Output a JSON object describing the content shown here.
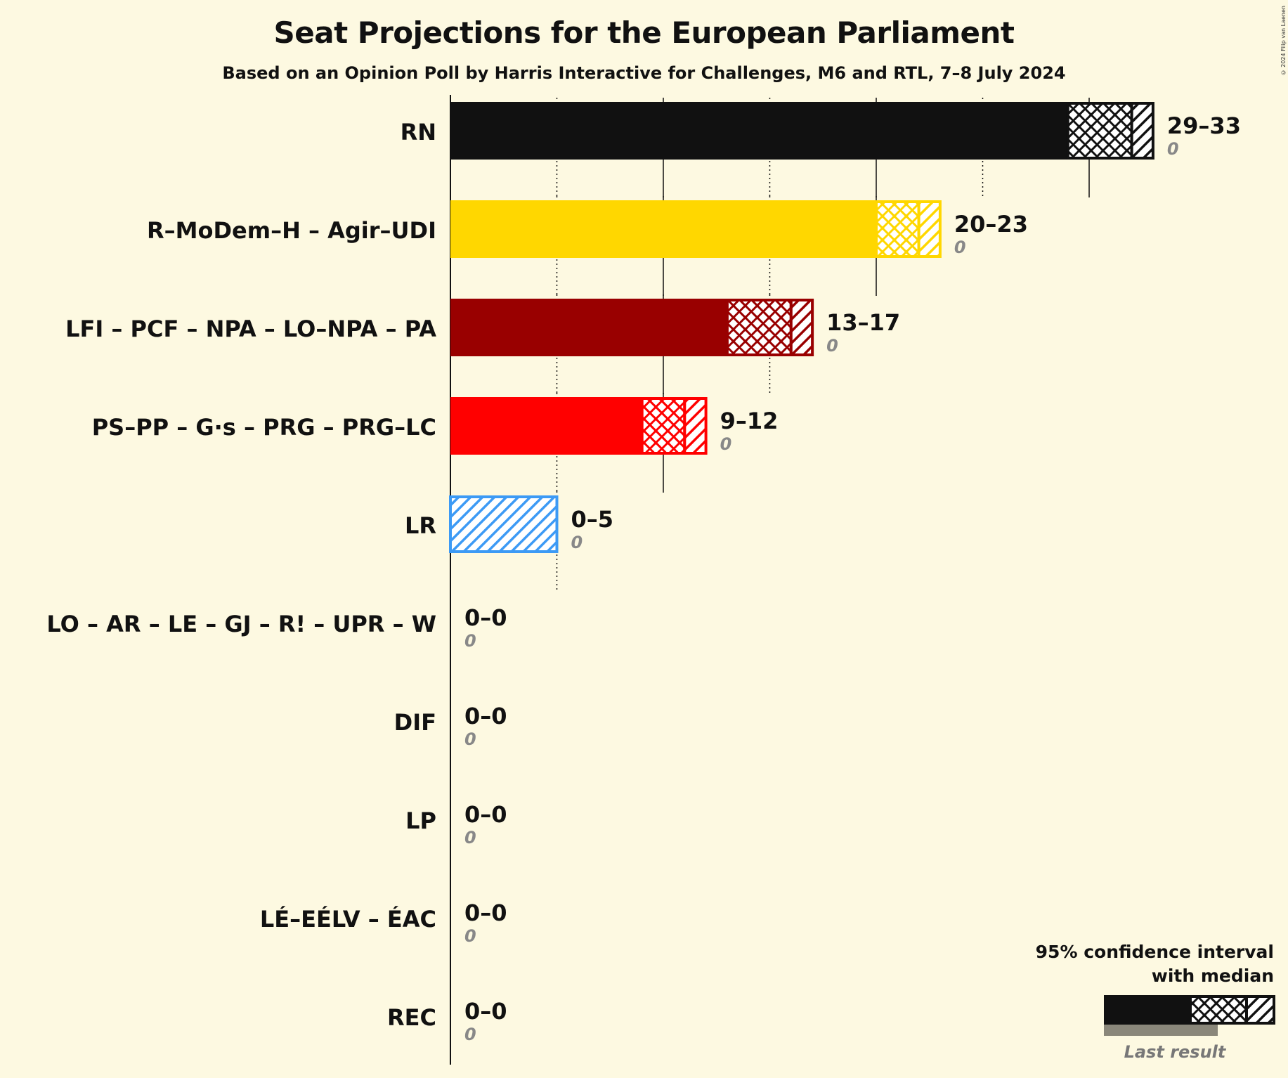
{
  "title": "Seat Projections for the European Parliament",
  "subtitle": "Based on an Opinion Poll by Harris Interactive for Challenges, M6 and RTL, 7–8 July 2024",
  "copyright": "© 2024 Filip van Laenen",
  "legend": {
    "title_line1": "95% confidence interval",
    "title_line2": "with median",
    "last_result": "Last result"
  },
  "chart_data": {
    "type": "bar",
    "orientation": "horizontal",
    "x_axis": {
      "min": 0,
      "max": 33,
      "major_ticks": [
        10,
        20,
        30
      ],
      "minor_ticks": [
        5,
        15,
        25
      ]
    },
    "categories": [
      "RN",
      "R–MoDem–H – Agir–UDI",
      "LFI – PCF – NPA – LO–NPA – PA",
      "PS–PP – G·s – PRG – PRG–LC",
      "LR",
      "LO – AR – LE – GJ – R! – UPR – W",
      "DIF",
      "LP",
      "LÉ–EÉLV – ÉAC",
      "REC"
    ],
    "series": [
      {
        "party": "RN",
        "low": 29,
        "median": 32,
        "high": 33,
        "range_label": "29–33",
        "last_result": 0,
        "last_label": "0",
        "color": "#111111"
      },
      {
        "party": "R–MoDem–H – Agir–UDI",
        "low": 20,
        "median": 22,
        "high": 23,
        "range_label": "20–23",
        "last_result": 0,
        "last_label": "0",
        "color": "#ffd700"
      },
      {
        "party": "LFI – PCF – NPA – LO–NPA – PA",
        "low": 13,
        "median": 16,
        "high": 17,
        "range_label": "13–17",
        "last_result": 0,
        "last_label": "0",
        "color": "#990000"
      },
      {
        "party": "PS–PP – G·s – PRG – PRG–LC",
        "low": 9,
        "median": 11,
        "high": 12,
        "range_label": "9–12",
        "last_result": 0,
        "last_label": "0",
        "color": "#ff0000"
      },
      {
        "party": "LR",
        "low": 0,
        "median": 0,
        "high": 5,
        "range_label": "0–5",
        "last_result": 0,
        "last_label": "0",
        "color": "#3c9af5"
      },
      {
        "party": "LO – AR – LE – GJ – R! – UPR – W",
        "low": 0,
        "median": 0,
        "high": 0,
        "range_label": "0–0",
        "last_result": 0,
        "last_label": "0",
        "color": "#888888"
      },
      {
        "party": "DIF",
        "low": 0,
        "median": 0,
        "high": 0,
        "range_label": "0–0",
        "last_result": 0,
        "last_label": "0",
        "color": "#888888"
      },
      {
        "party": "LP",
        "low": 0,
        "median": 0,
        "high": 0,
        "range_label": "0–0",
        "last_result": 0,
        "last_label": "0",
        "color": "#888888"
      },
      {
        "party": "LÉ–EÉLV – ÉAC",
        "low": 0,
        "median": 0,
        "high": 0,
        "range_label": "0–0",
        "last_result": 0,
        "last_label": "0",
        "color": "#888888"
      },
      {
        "party": "REC",
        "low": 0,
        "median": 0,
        "high": 0,
        "range_label": "0–0",
        "last_result": 0,
        "last_label": "0",
        "color": "#888888"
      }
    ]
  }
}
